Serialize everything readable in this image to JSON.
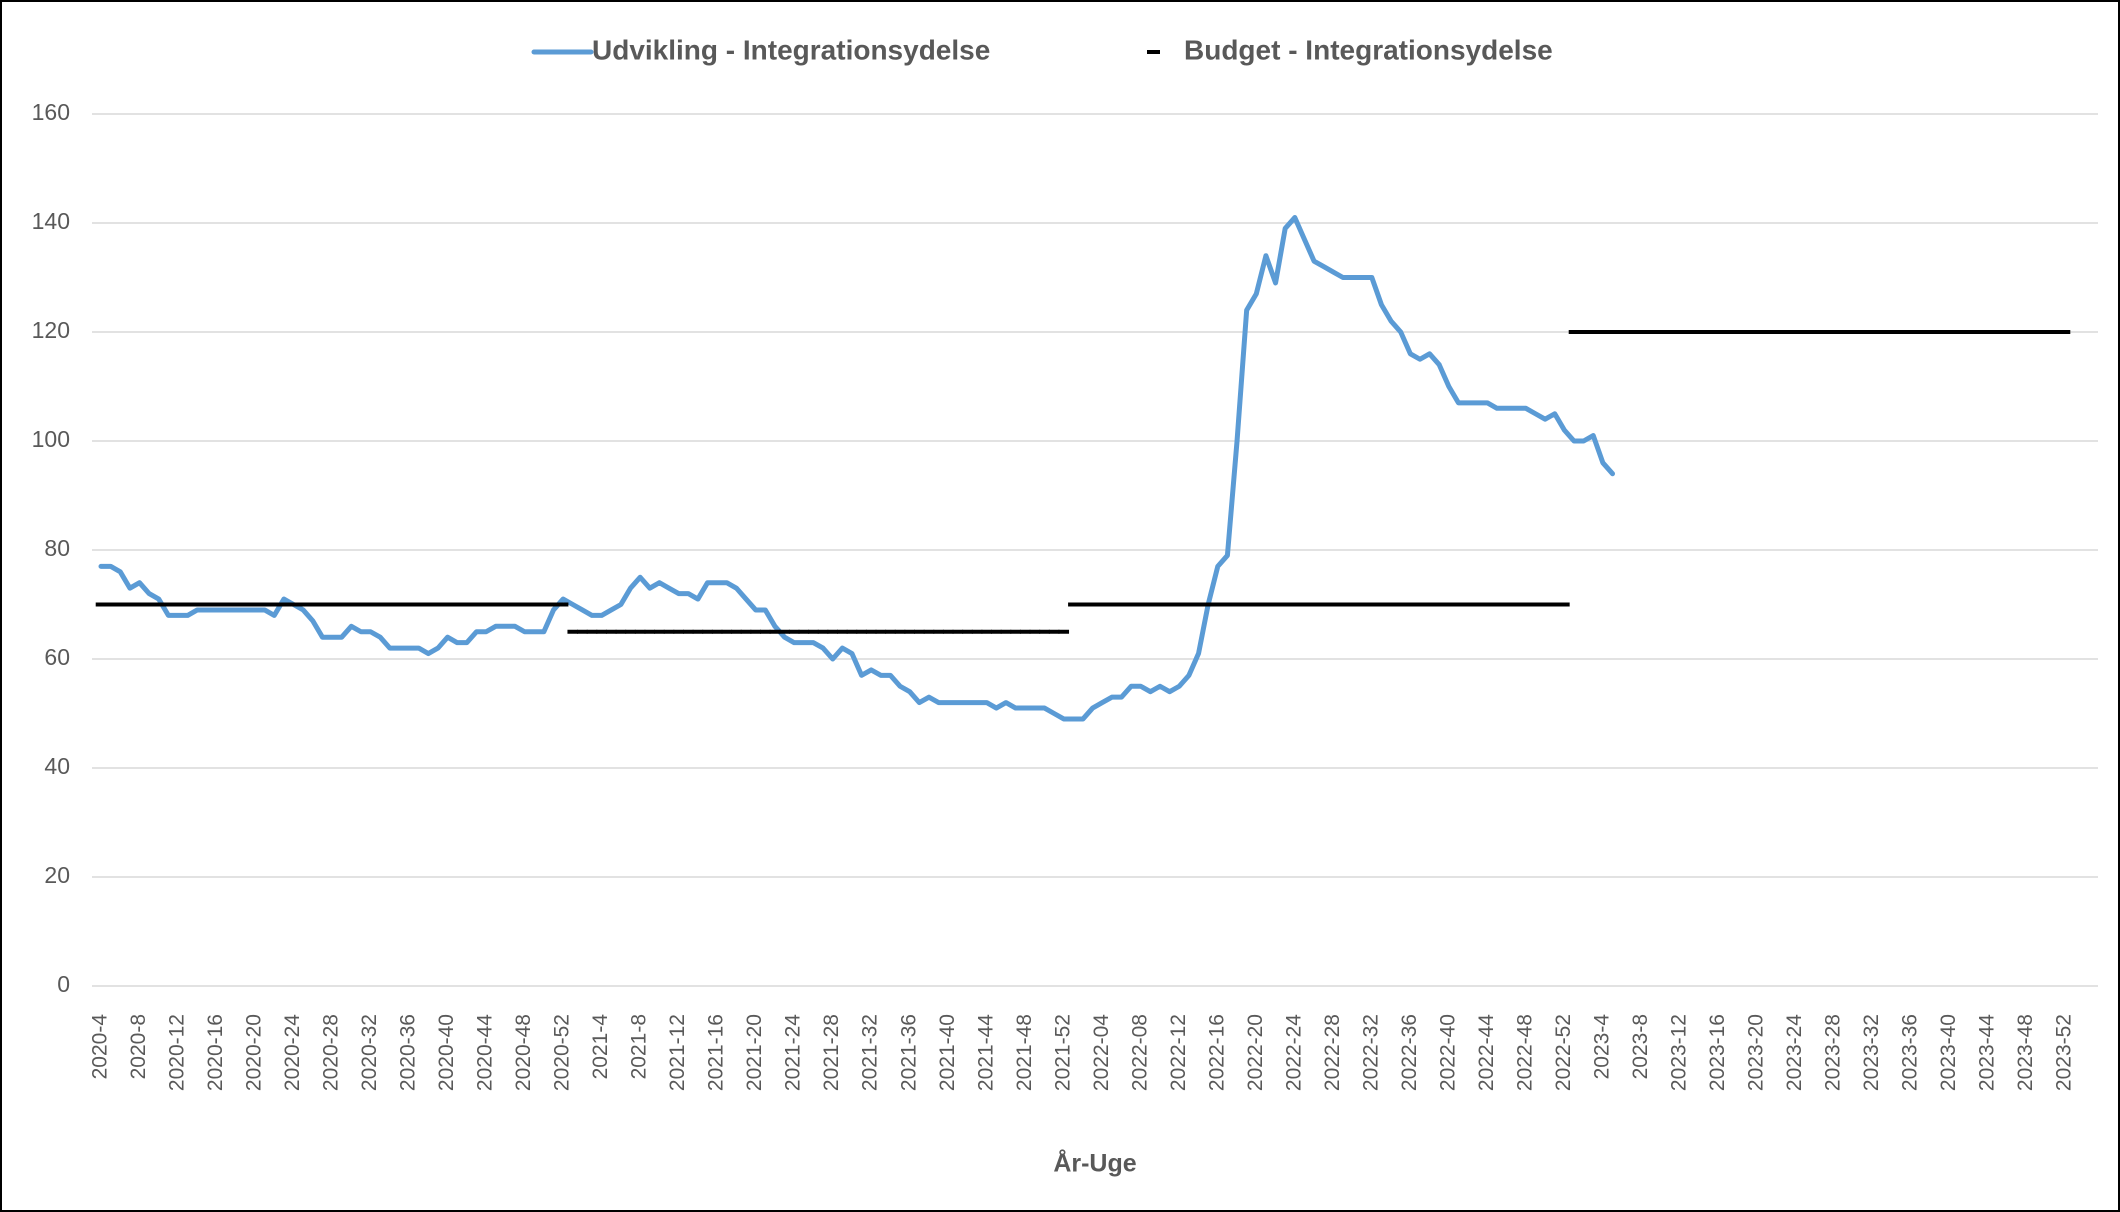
{
  "chart_data": {
    "type": "line",
    "xlabel": "År-Uge",
    "legend": "top",
    "grid": true,
    "ylim": [
      0,
      160
    ],
    "yticks": [
      0,
      20,
      40,
      60,
      80,
      100,
      120,
      140,
      160
    ],
    "categories": [
      "2020-4",
      null,
      null,
      null,
      "2020-8",
      null,
      null,
      null,
      "2020-12",
      null,
      null,
      null,
      "2020-16",
      null,
      null,
      null,
      "2020-20",
      null,
      null,
      null,
      "2020-24",
      null,
      null,
      null,
      "2020-28",
      null,
      null,
      null,
      "2020-32",
      null,
      null,
      null,
      "2020-36",
      null,
      null,
      null,
      "2020-40",
      null,
      null,
      null,
      "2020-44",
      null,
      null,
      null,
      "2020-48",
      null,
      null,
      null,
      "2020-52",
      null,
      null,
      null,
      "2021-4",
      null,
      null,
      null,
      "2021-8",
      null,
      null,
      null,
      "2021-12",
      null,
      null,
      null,
      "2021-16",
      null,
      null,
      null,
      "2021-20",
      null,
      null,
      null,
      "2021-24",
      null,
      null,
      null,
      "2021-28",
      null,
      null,
      null,
      "2021-32",
      null,
      null,
      null,
      "2021-36",
      null,
      null,
      null,
      "2021-40",
      null,
      null,
      null,
      "2021-44",
      null,
      null,
      null,
      "2021-48",
      null,
      null,
      null,
      "2021-52",
      null,
      null,
      null,
      "2022-04",
      null,
      null,
      null,
      "2022-08",
      null,
      null,
      null,
      "2022-12",
      null,
      null,
      null,
      "2022-16",
      null,
      null,
      null,
      "2022-20",
      null,
      null,
      null,
      "2022-24",
      null,
      null,
      null,
      "2022-28",
      null,
      null,
      null,
      "2022-32",
      null,
      null,
      null,
      "2022-36",
      null,
      null,
      null,
      "2022-40",
      null,
      null,
      null,
      "2022-44",
      null,
      null,
      null,
      "2022-48",
      null,
      null,
      null,
      "2022-52",
      null,
      null,
      null,
      "2023-4",
      null,
      null,
      null,
      "2023-8",
      null,
      null,
      null,
      "2023-12",
      null,
      null,
      null,
      "2023-16",
      null,
      null,
      null,
      "2023-20",
      null,
      null,
      null,
      "2023-24",
      null,
      null,
      null,
      "2023-28",
      null,
      null,
      null,
      "2023-32",
      null,
      null,
      null,
      "2023-36",
      null,
      null,
      null,
      "2023-40",
      null,
      null,
      null,
      "2023-44",
      null,
      null,
      null,
      "2023-48",
      null,
      null,
      null,
      "2023-52"
    ],
    "series": [
      {
        "name": "Udvikling - Integrationsydelse",
        "color": "#5b9bd5",
        "values": [
          77,
          77,
          76,
          73,
          74,
          72,
          71,
          68,
          68,
          68,
          69,
          69,
          69,
          69,
          69,
          69,
          69,
          69,
          68,
          71,
          70,
          69,
          67,
          64,
          64,
          64,
          66,
          65,
          65,
          64,
          62,
          62,
          62,
          62,
          61,
          62,
          64,
          63,
          63,
          65,
          65,
          66,
          66,
          66,
          65,
          65,
          65,
          69,
          71,
          70,
          69,
          68,
          68,
          69,
          70,
          73,
          75,
          73,
          74,
          73,
          72,
          72,
          71,
          74,
          74,
          74,
          73,
          71,
          69,
          69,
          66,
          64,
          63,
          63,
          63,
          62,
          60,
          62,
          61,
          57,
          58,
          57,
          57,
          55,
          54,
          52,
          53,
          52,
          52,
          52,
          52,
          52,
          52,
          51,
          52,
          51,
          51,
          51,
          51,
          50,
          49,
          49,
          49,
          51,
          52,
          53,
          53,
          55,
          55,
          54,
          55,
          54,
          55,
          57,
          61,
          70,
          77,
          79,
          100,
          124,
          127,
          134,
          129,
          139,
          141,
          137,
          133,
          132,
          131,
          130,
          130,
          130,
          130,
          125,
          122,
          120,
          116,
          115,
          116,
          114,
          110,
          107,
          107,
          107,
          107,
          106,
          106,
          106,
          106,
          105,
          104,
          105,
          102,
          100,
          100,
          101,
          96,
          94,
          null,
          null,
          null,
          null,
          null,
          null,
          null,
          null,
          null,
          null,
          null,
          null,
          null,
          null,
          null,
          null,
          null,
          null,
          null,
          null,
          null,
          null,
          null,
          null,
          null,
          null,
          null,
          null,
          null,
          null,
          null,
          null,
          null,
          null,
          null,
          null,
          null,
          null,
          null,
          null,
          null,
          null,
          null,
          null,
          null,
          null,
          null
        ]
      },
      {
        "name": "Budget - Integrationsydelse",
        "color": "#000000",
        "marker": "dash",
        "values": [
          70,
          70,
          70,
          70,
          70,
          70,
          70,
          70,
          70,
          70,
          70,
          70,
          70,
          70,
          70,
          70,
          70,
          70,
          70,
          70,
          70,
          70,
          70,
          70,
          70,
          70,
          70,
          70,
          70,
          70,
          70,
          70,
          70,
          70,
          70,
          70,
          70,
          70,
          70,
          70,
          70,
          70,
          70,
          70,
          70,
          70,
          70,
          70,
          70,
          65,
          65,
          65,
          65,
          65,
          65,
          65,
          65,
          65,
          65,
          65,
          65,
          65,
          65,
          65,
          65,
          65,
          65,
          65,
          65,
          65,
          65,
          65,
          65,
          65,
          65,
          65,
          65,
          65,
          65,
          65,
          65,
          65,
          65,
          65,
          65,
          65,
          65,
          65,
          65,
          65,
          65,
          65,
          65,
          65,
          65,
          65,
          65,
          65,
          65,
          65,
          65,
          70,
          70,
          70,
          70,
          70,
          70,
          70,
          70,
          70,
          70,
          70,
          70,
          70,
          70,
          70,
          70,
          70,
          70,
          70,
          70,
          70,
          70,
          70,
          70,
          70,
          70,
          70,
          70,
          70,
          70,
          70,
          70,
          70,
          70,
          70,
          70,
          70,
          70,
          70,
          70,
          70,
          70,
          70,
          70,
          70,
          70,
          70,
          70,
          70,
          70,
          70,
          70,
          120,
          120,
          120,
          120,
          120,
          120,
          120,
          120,
          120,
          120,
          120,
          120,
          120,
          120,
          120,
          120,
          120,
          120,
          120,
          120,
          120,
          120,
          120,
          120,
          120,
          120,
          120,
          120,
          120,
          120,
          120,
          120,
          120,
          120,
          120,
          120,
          120,
          120,
          120,
          120,
          120,
          120,
          120,
          120,
          120,
          120,
          120,
          120,
          120,
          120,
          120,
          120
        ]
      }
    ]
  }
}
